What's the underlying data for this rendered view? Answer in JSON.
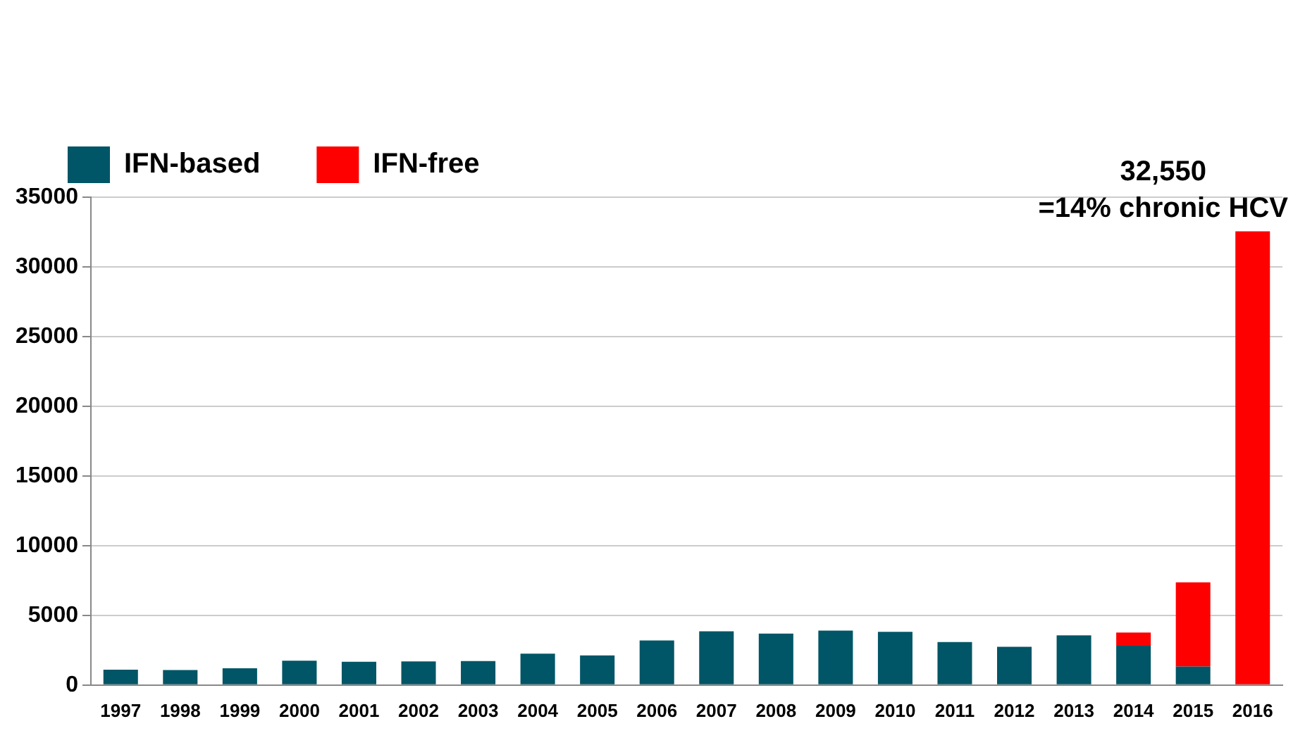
{
  "chart_data": {
    "type": "bar",
    "stacked": true,
    "categories": [
      "1997",
      "1998",
      "1999",
      "2000",
      "2001",
      "2002",
      "2003",
      "2004",
      "2005",
      "2006",
      "2007",
      "2008",
      "2009",
      "2010",
      "2011",
      "2012",
      "2013",
      "2014",
      "2015",
      "2016"
    ],
    "series": [
      {
        "name": "IFN-based",
        "color": "#005566",
        "values": [
          1100,
          1080,
          1200,
          1740,
          1670,
          1690,
          1720,
          2250,
          2130,
          3200,
          3850,
          3690,
          3900,
          3820,
          3080,
          2740,
          3560,
          2820,
          1330,
          0
        ]
      },
      {
        "name": "IFN-free",
        "color": "#ff0000",
        "values": [
          0,
          0,
          0,
          0,
          0,
          0,
          0,
          0,
          0,
          0,
          0,
          0,
          0,
          0,
          0,
          0,
          0,
          950,
          6030,
          32550
        ]
      }
    ],
    "ylim": [
      0,
      35000
    ],
    "yticks": [
      0,
      5000,
      10000,
      15000,
      20000,
      25000,
      30000,
      35000
    ],
    "grid": "y",
    "legend": "top left",
    "annotations": [
      {
        "text": "32,550\n=14% chronic HCV",
        "x": "2016",
        "y": 32550
      }
    ]
  }
}
